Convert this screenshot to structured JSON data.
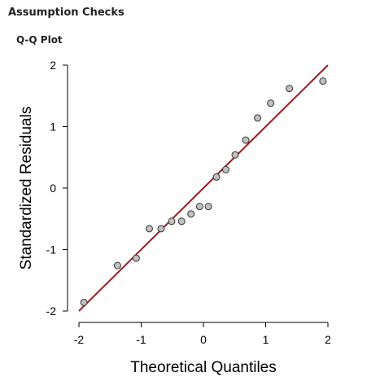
{
  "header": {
    "section_title": "Assumption Checks",
    "plot_title": "Q-Q Plot"
  },
  "chart_data": {
    "type": "scatter",
    "title": "Q-Q Plot",
    "xlabel": "Theoretical Quantiles",
    "ylabel": "Standardized Residuals",
    "xlim": [
      -2,
      2
    ],
    "ylim": [
      -2,
      2
    ],
    "x_ticks": [
      "-2",
      "-1",
      "0",
      "1",
      "2"
    ],
    "y_ticks": [
      "-2",
      "-1",
      "0",
      "1",
      "2"
    ],
    "reference_line": {
      "from": [
        -2,
        -2
      ],
      "to": [
        2,
        2
      ],
      "color": "#9b1c1c"
    },
    "point_color": "#c0c0c0",
    "points": [
      {
        "x": -1.92,
        "y": -1.86
      },
      {
        "x": -1.38,
        "y": -1.26
      },
      {
        "x": -1.08,
        "y": -1.14
      },
      {
        "x": -0.87,
        "y": -0.66
      },
      {
        "x": -0.68,
        "y": -0.66
      },
      {
        "x": -0.51,
        "y": -0.54
      },
      {
        "x": -0.35,
        "y": -0.54
      },
      {
        "x": -0.2,
        "y": -0.42
      },
      {
        "x": -0.06,
        "y": -0.3
      },
      {
        "x": 0.08,
        "y": -0.3
      },
      {
        "x": 0.21,
        "y": 0.18
      },
      {
        "x": 0.36,
        "y": 0.3
      },
      {
        "x": 0.51,
        "y": 0.54
      },
      {
        "x": 0.68,
        "y": 0.78
      },
      {
        "x": 0.87,
        "y": 1.14
      },
      {
        "x": 1.08,
        "y": 1.38
      },
      {
        "x": 1.38,
        "y": 1.62
      },
      {
        "x": 1.92,
        "y": 1.74
      }
    ]
  }
}
